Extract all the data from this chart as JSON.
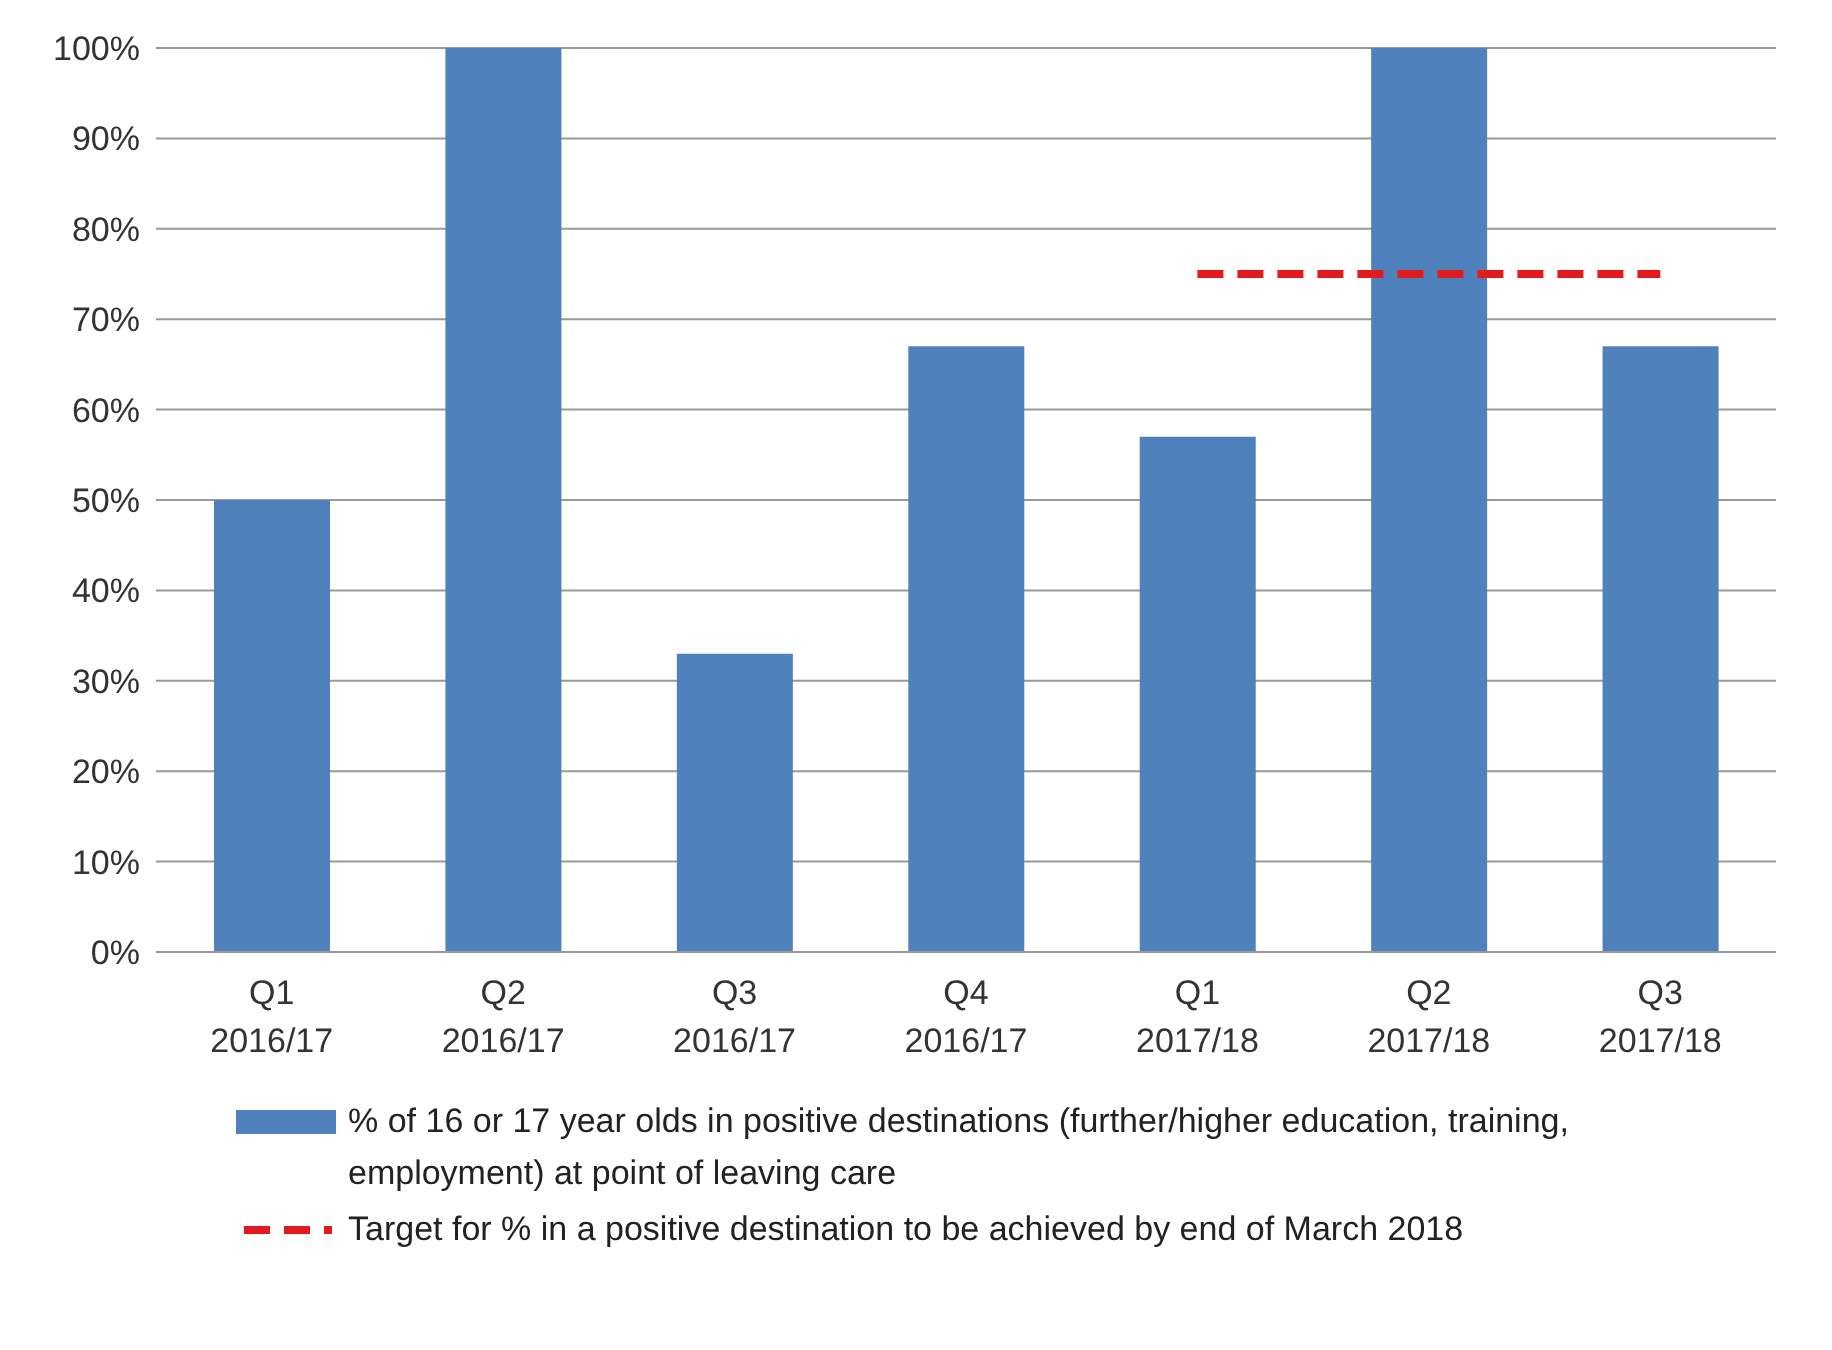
{
  "chart_data": {
    "type": "bar",
    "categories": [
      "Q1 2016/17",
      "Q2 2016/17",
      "Q3 2016/17",
      "Q4 2016/17",
      "Q1 2017/18",
      "Q2 2017/18",
      "Q3 2017/18"
    ],
    "series": [
      {
        "name": "% of 16 or 17 year olds in positive destinations (further/higher education, training, employment) at point of leaving care",
        "color": "#4f81bd",
        "values": [
          50,
          100,
          33,
          67,
          57,
          100,
          67
        ]
      },
      {
        "type": "line",
        "name": "Target for % in a positive destination to be achieved by end of March 2018",
        "color": "#e31a1c",
        "line_style": "dashed",
        "marker": "none",
        "values": [
          null,
          null,
          null,
          null,
          75,
          75,
          75
        ]
      }
    ],
    "ylim": [
      0,
      100
    ],
    "yticks": [
      {
        "value": 0,
        "label": "0%"
      },
      {
        "value": 10,
        "label": "10%"
      },
      {
        "value": 20,
        "label": "20%"
      },
      {
        "value": 30,
        "label": "30%"
      },
      {
        "value": 40,
        "label": "40%"
      },
      {
        "value": 50,
        "label": "50%"
      },
      {
        "value": 60,
        "label": "60%"
      },
      {
        "value": 70,
        "label": "70%"
      },
      {
        "value": 80,
        "label": "80%"
      },
      {
        "value": 90,
        "label": "90%"
      },
      {
        "value": 100,
        "label": "100%"
      }
    ],
    "grid": "y",
    "legend": "bottom"
  }
}
